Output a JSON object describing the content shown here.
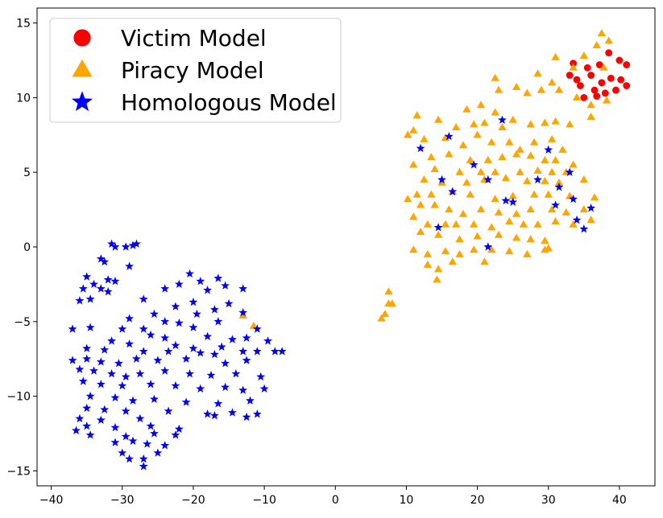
{
  "chart_data": {
    "type": "scatter",
    "xlim": [
      -42,
      45
    ],
    "ylim": [
      -16,
      16
    ],
    "x_ticks": [
      -40,
      -30,
      -20,
      -10,
      0,
      10,
      20,
      30,
      40
    ],
    "y_ticks": [
      -15,
      -10,
      -5,
      0,
      5,
      10,
      15
    ],
    "x_tick_labels": [
      "−40",
      "−30",
      "−20",
      "−10",
      "0",
      "10",
      "20",
      "30",
      "40"
    ],
    "y_tick_labels": [
      "−15",
      "−10",
      "−5",
      "0",
      "5",
      "10",
      "15"
    ],
    "grid": false,
    "legend_position": "top-left",
    "series": [
      {
        "name": "Victim Model",
        "marker": "circle",
        "color": "#ff0000",
        "points": [
          [
            33.5,
            12.3
          ],
          [
            35.5,
            12.0
          ],
          [
            37.2,
            12.2
          ],
          [
            38.5,
            13.0
          ],
          [
            40.0,
            12.5
          ],
          [
            41.0,
            12.2
          ],
          [
            33.0,
            11.5
          ],
          [
            34.0,
            11.2
          ],
          [
            36.0,
            11.5
          ],
          [
            37.5,
            11.0
          ],
          [
            38.8,
            11.3
          ],
          [
            40.2,
            11.2
          ],
          [
            41.0,
            10.8
          ],
          [
            34.5,
            10.8
          ],
          [
            36.5,
            10.5
          ],
          [
            38.0,
            10.3
          ],
          [
            39.5,
            10.5
          ],
          [
            35.0,
            10.0
          ],
          [
            36.8,
            10.1
          ]
        ]
      },
      {
        "name": "Piracy Model",
        "marker": "triangle",
        "color": "#ffa500",
        "points": [
          [
            37.5,
            14.3
          ],
          [
            36.8,
            13.5
          ],
          [
            38.5,
            13.8
          ],
          [
            31.0,
            12.7
          ],
          [
            35.0,
            12.8
          ],
          [
            33.5,
            12.0
          ],
          [
            37.8,
            12.0
          ],
          [
            22.5,
            11.3
          ],
          [
            28.5,
            11.6
          ],
          [
            30.5,
            11.0
          ],
          [
            23.0,
            10.5
          ],
          [
            25.5,
            10.7
          ],
          [
            27.0,
            10.3
          ],
          [
            29.0,
            10.5
          ],
          [
            31.5,
            10.5
          ],
          [
            34.0,
            10.0
          ],
          [
            36.0,
            9.5
          ],
          [
            38.2,
            9.8
          ],
          [
            36.0,
            8.7
          ],
          [
            18.5,
            9.2
          ],
          [
            20.5,
            9.5
          ],
          [
            22.5,
            9.0
          ],
          [
            11.5,
            8.8
          ],
          [
            14.5,
            8.5
          ],
          [
            17.0,
            8.0
          ],
          [
            19.5,
            8.2
          ],
          [
            21.0,
            8.3
          ],
          [
            23.5,
            8.0
          ],
          [
            25.0,
            8.5
          ],
          [
            27.5,
            8.2
          ],
          [
            29.5,
            8.3
          ],
          [
            31.0,
            8.4
          ],
          [
            33.0,
            8.2
          ],
          [
            10.2,
            7.5
          ],
          [
            11.0,
            7.8
          ],
          [
            12.5,
            7.2
          ],
          [
            15.5,
            7.3
          ],
          [
            18.0,
            6.8
          ],
          [
            20.0,
            7.5
          ],
          [
            22.0,
            7.0
          ],
          [
            24.5,
            7.0
          ],
          [
            26.0,
            6.5
          ],
          [
            28.0,
            7.0
          ],
          [
            30.5,
            7.2
          ],
          [
            32.0,
            6.5
          ],
          [
            13.5,
            6.0
          ],
          [
            16.0,
            6.2
          ],
          [
            19.0,
            5.8
          ],
          [
            21.5,
            5.8
          ],
          [
            23.5,
            6.0
          ],
          [
            25.5,
            6.2
          ],
          [
            27.5,
            6.1
          ],
          [
            29.5,
            5.8
          ],
          [
            31.0,
            5.8
          ],
          [
            33.5,
            5.5
          ],
          [
            11.0,
            5.5
          ],
          [
            14.0,
            5.2
          ],
          [
            17.5,
            5.0
          ],
          [
            20.5,
            5.0
          ],
          [
            22.5,
            5.0
          ],
          [
            26.0,
            5.0
          ],
          [
            28.5,
            5.1
          ],
          [
            30.5,
            5.0
          ],
          [
            32.5,
            5.0
          ],
          [
            12.5,
            4.5
          ],
          [
            15.0,
            4.3
          ],
          [
            18.5,
            4.3
          ],
          [
            21.0,
            4.5
          ],
          [
            24.0,
            4.6
          ],
          [
            27.0,
            4.4
          ],
          [
            29.5,
            4.4
          ],
          [
            31.5,
            4.3
          ],
          [
            35.0,
            4.5
          ],
          [
            11.5,
            3.5
          ],
          [
            13.5,
            3.5
          ],
          [
            16.5,
            3.7
          ],
          [
            19.0,
            3.5
          ],
          [
            22.5,
            3.2
          ],
          [
            25.0,
            3.4
          ],
          [
            28.0,
            3.5
          ],
          [
            30.0,
            3.5
          ],
          [
            33.0,
            3.4
          ],
          [
            36.5,
            3.3
          ],
          [
            10.2,
            3.2
          ],
          [
            12.0,
            2.8
          ],
          [
            14.0,
            2.8
          ],
          [
            16.0,
            2.5
          ],
          [
            18.0,
            2.2
          ],
          [
            20.5,
            2.5
          ],
          [
            23.0,
            2.3
          ],
          [
            25.5,
            2.2
          ],
          [
            27.5,
            2.5
          ],
          [
            30.5,
            2.5
          ],
          [
            32.5,
            2.3
          ],
          [
            35.0,
            2.5
          ],
          [
            11.0,
            2.0
          ],
          [
            13.0,
            1.5
          ],
          [
            15.5,
            1.5
          ],
          [
            17.0,
            1.5
          ],
          [
            19.5,
            1.5
          ],
          [
            22.0,
            1.3
          ],
          [
            24.5,
            1.7
          ],
          [
            26.5,
            1.5
          ],
          [
            28.5,
            1.5
          ],
          [
            31.0,
            1.7
          ],
          [
            33.5,
            1.5
          ],
          [
            36.0,
            1.8
          ],
          [
            12.0,
            1.0
          ],
          [
            14.5,
            0.8
          ],
          [
            17.5,
            0.5
          ],
          [
            20.0,
            0.7
          ],
          [
            23.0,
            0.8
          ],
          [
            25.5,
            0.6
          ],
          [
            27.5,
            0.5
          ],
          [
            29.5,
            0.4
          ],
          [
            11.0,
            -0.2
          ],
          [
            13.0,
            -0.5
          ],
          [
            15.5,
            -0.3
          ],
          [
            17.5,
            -0.5
          ],
          [
            19.5,
            -0.2
          ],
          [
            22.0,
            -0.2
          ],
          [
            24.5,
            -0.3
          ],
          [
            27.0,
            -0.5
          ],
          [
            29.5,
            -0.2
          ],
          [
            30.0,
            -0.1
          ],
          [
            16.5,
            -1.0
          ],
          [
            21.0,
            -1.0
          ],
          [
            13.0,
            -1.2
          ],
          [
            14.5,
            -1.5
          ],
          [
            14.3,
            -2.2
          ],
          [
            7.5,
            -3.0
          ],
          [
            7.5,
            -3.8
          ],
          [
            8.0,
            -3.8
          ],
          [
            7.0,
            -4.5
          ],
          [
            6.5,
            -4.8
          ],
          [
            -13.0,
            -4.6
          ],
          [
            -11.5,
            -5.3
          ]
        ]
      },
      {
        "name": "Homologous Model",
        "marker": "star",
        "color": "#0000ff",
        "points": [
          [
            23.5,
            8.5
          ],
          [
            16.0,
            7.4
          ],
          [
            12.0,
            6.6
          ],
          [
            30.0,
            6.5
          ],
          [
            19.5,
            5.5
          ],
          [
            33.0,
            5.0
          ],
          [
            15.0,
            4.5
          ],
          [
            21.5,
            4.5
          ],
          [
            28.5,
            4.5
          ],
          [
            31.5,
            4.0
          ],
          [
            16.5,
            3.7
          ],
          [
            24.0,
            3.1
          ],
          [
            25.0,
            3.0
          ],
          [
            33.5,
            3.2
          ],
          [
            31.0,
            2.8
          ],
          [
            36.0,
            2.6
          ],
          [
            34.0,
            1.8
          ],
          [
            14.5,
            1.3
          ],
          [
            35.0,
            1.2
          ],
          [
            21.5,
            0.0
          ],
          [
            -31.5,
            0.2
          ],
          [
            -29.5,
            0.0
          ],
          [
            -28.0,
            0.2
          ],
          [
            -31.0,
            0.0
          ],
          [
            -28.5,
            0.1
          ],
          [
            -33.0,
            -0.8
          ],
          [
            -32.5,
            -1.0
          ],
          [
            -29.0,
            -1.3
          ],
          [
            -35.0,
            -2.0
          ],
          [
            -32.0,
            -2.2
          ],
          [
            -34.0,
            -2.5
          ],
          [
            -31.0,
            -2.3
          ],
          [
            -35.5,
            -2.8
          ],
          [
            -33.0,
            -2.8
          ],
          [
            -32.0,
            -3.0
          ],
          [
            -20.5,
            -1.8
          ],
          [
            -16.5,
            -2.1
          ],
          [
            -19.0,
            -2.3
          ],
          [
            -22.0,
            -2.5
          ],
          [
            -15.5,
            -2.6
          ],
          [
            -13.0,
            -2.8
          ],
          [
            -24.0,
            -2.8
          ],
          [
            -18.0,
            -2.9
          ],
          [
            -34.5,
            -3.5
          ],
          [
            -36.0,
            -3.6
          ],
          [
            -27.0,
            -3.5
          ],
          [
            -20.0,
            -3.7
          ],
          [
            -15.0,
            -3.8
          ],
          [
            -22.5,
            -4.0
          ],
          [
            -17.0,
            -4.2
          ],
          [
            -25.5,
            -4.5
          ],
          [
            -19.5,
            -4.5
          ],
          [
            -13.0,
            -4.4
          ],
          [
            -29.0,
            -4.8
          ],
          [
            -24.0,
            -5.0
          ],
          [
            -22.0,
            -5.1
          ],
          [
            -30.0,
            -5.5
          ],
          [
            -27.0,
            -5.5
          ],
          [
            -20.0,
            -5.4
          ],
          [
            -16.5,
            -5.0
          ],
          [
            -11.0,
            -5.5
          ],
          [
            -37.0,
            -5.5
          ],
          [
            -34.5,
            -5.4
          ],
          [
            -26.0,
            -5.9
          ],
          [
            -24.0,
            -6.1
          ],
          [
            -18.0,
            -6.0
          ],
          [
            -14.5,
            -6.2
          ],
          [
            -12.5,
            -6.1
          ],
          [
            -9.5,
            -6.3
          ],
          [
            -31.5,
            -6.3
          ],
          [
            -29.0,
            -6.5
          ],
          [
            -22.5,
            -6.6
          ],
          [
            -20.0,
            -6.8
          ],
          [
            -16.0,
            -6.7
          ],
          [
            -35.0,
            -6.8
          ],
          [
            -32.5,
            -6.9
          ],
          [
            -27.0,
            -7.0
          ],
          [
            -23.5,
            -7.0
          ],
          [
            -19.0,
            -7.1
          ],
          [
            -17.0,
            -7.2
          ],
          [
            -13.0,
            -7.0
          ],
          [
            -11.0,
            -7.0
          ],
          [
            -8.5,
            -7.0
          ],
          [
            -7.5,
            -7.0
          ],
          [
            -37.0,
            -7.6
          ],
          [
            -35.0,
            -7.5
          ],
          [
            -33.0,
            -7.7
          ],
          [
            -30.5,
            -7.8
          ],
          [
            -28.0,
            -7.5
          ],
          [
            -25.0,
            -7.6
          ],
          [
            -21.0,
            -7.5
          ],
          [
            -15.5,
            -7.8
          ],
          [
            -12.5,
            -7.6
          ],
          [
            -36.0,
            -8.2
          ],
          [
            -34.0,
            -8.3
          ],
          [
            -31.5,
            -8.5
          ],
          [
            -29.5,
            -8.7
          ],
          [
            -27.5,
            -8.5
          ],
          [
            -24.0,
            -8.3
          ],
          [
            -20.5,
            -8.5
          ],
          [
            -17.5,
            -8.6
          ],
          [
            -14.0,
            -8.5
          ],
          [
            -10.5,
            -8.7
          ],
          [
            -35.5,
            -9.0
          ],
          [
            -33.0,
            -9.2
          ],
          [
            -30.0,
            -9.3
          ],
          [
            -26.0,
            -9.2
          ],
          [
            -22.5,
            -9.3
          ],
          [
            -19.0,
            -9.5
          ],
          [
            -15.5,
            -9.4
          ],
          [
            -13.0,
            -9.6
          ],
          [
            -10.0,
            -9.5
          ],
          [
            -34.5,
            -10.0
          ],
          [
            -31.0,
            -10.1
          ],
          [
            -28.5,
            -10.3
          ],
          [
            -25.5,
            -10.2
          ],
          [
            -21.0,
            -10.4
          ],
          [
            -16.5,
            -10.5
          ],
          [
            -12.0,
            -10.3
          ],
          [
            -35.0,
            -10.8
          ],
          [
            -32.5,
            -10.9
          ],
          [
            -29.5,
            -11.0
          ],
          [
            -23.5,
            -11.0
          ],
          [
            -18.0,
            -11.2
          ],
          [
            -14.5,
            -11.1
          ],
          [
            -11.0,
            -11.2
          ],
          [
            -36.0,
            -11.5
          ],
          [
            -33.0,
            -11.6
          ],
          [
            -27.5,
            -11.5
          ],
          [
            -17.0,
            -11.3
          ],
          [
            -12.5,
            -11.4
          ],
          [
            -35.0,
            -12.0
          ],
          [
            -31.0,
            -12.1
          ],
          [
            -26.0,
            -12.0
          ],
          [
            -22.0,
            -12.2
          ],
          [
            -36.5,
            -12.3
          ],
          [
            -34.5,
            -12.6
          ],
          [
            -29.5,
            -12.7
          ],
          [
            -25.5,
            -12.5
          ],
          [
            -22.5,
            -12.6
          ],
          [
            -31.0,
            -13.1
          ],
          [
            -28.5,
            -13.0
          ],
          [
            -26.5,
            -13.2
          ],
          [
            -24.0,
            -13.3
          ],
          [
            -30.0,
            -13.8
          ],
          [
            -25.0,
            -13.8
          ],
          [
            -29.0,
            -14.2
          ],
          [
            -27.0,
            -14.2
          ],
          [
            -27.0,
            -14.7
          ]
        ]
      }
    ]
  },
  "colors": {
    "axis": "#000000",
    "background": "#ffffff",
    "legend_border": "#cccccc"
  }
}
